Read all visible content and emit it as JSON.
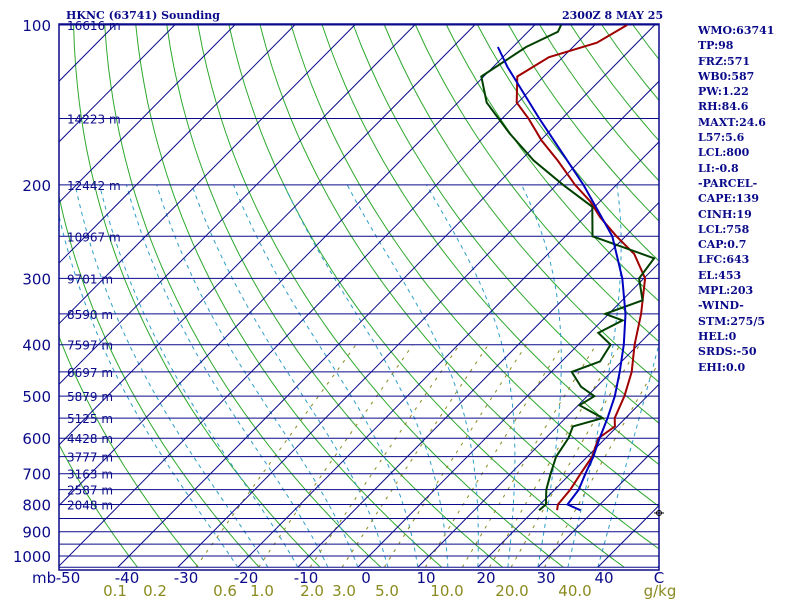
{
  "header": {
    "station": "HKNC (63741) Sounding",
    "time": "2300Z  8 MAY 25"
  },
  "side_panel": [
    "WMO:63741",
    "TP:98",
    "FRZ:571",
    "WB0:587",
    "PW:1.22",
    "RH:84.6",
    "MAXT:24.6",
    "L57:5.6",
    "LCL:800",
    "LI:-0.8",
    "-PARCEL-",
    "CAPE:139",
    "CINH:19",
    "LCL:758",
    "CAP:0.7",
    "LFC:643",
    "EL:453",
    "MPL:203",
    "-WIND-",
    "STM:275/5",
    "HEL:0",
    "SRDS:-50",
    "EHI:0.0"
  ],
  "colors": {
    "frame": "#0a0a8a",
    "isobar": "#0a0a8a",
    "isotherm": "#0a0a8a",
    "dry_adiabat": "#2ea82e",
    "moist_adiabat": "#2e9ec8",
    "mixing_ratio": "#8a8a20",
    "temperature": "#a00000",
    "dewpoint": "#004000",
    "parcel": "#0000c0"
  },
  "chart_data": {
    "type": "line",
    "title": "HKNC (63741) Sounding",
    "ylabel": "mb",
    "pressure_ticks": [
      100,
      200,
      300,
      400,
      500,
      600,
      700,
      800,
      900,
      1000
    ],
    "temperature_ticks": [
      "-50",
      "-40",
      "-30",
      "-20",
      "-10",
      "0",
      "10",
      "20",
      "30",
      "40",
      "C"
    ],
    "mixing_ratio_ticks": [
      "0.1",
      "0.2",
      "0.6",
      "1.0",
      "2.0",
      "3.0",
      "5.0",
      "10.0",
      "20.0",
      "40.0",
      "g/kg"
    ],
    "height_labels": [
      {
        "p": 100,
        "label": "16616 m"
      },
      {
        "p": 150,
        "label": "14223 m"
      },
      {
        "p": 200,
        "label": "12442 m"
      },
      {
        "p": 250,
        "label": "10967 m"
      },
      {
        "p": 300,
        "label": "9701 m"
      },
      {
        "p": 350,
        "label": "8590 m"
      },
      {
        "p": 400,
        "label": "7597 m"
      },
      {
        "p": 450,
        "label": "6697 m"
      },
      {
        "p": 500,
        "label": "5879 m"
      },
      {
        "p": 550,
        "label": "5125 m"
      },
      {
        "p": 600,
        "label": "4428 m"
      },
      {
        "p": 650,
        "label": "3777 m"
      },
      {
        "p": 700,
        "label": "3163 m"
      },
      {
        "p": 750,
        "label": "2587 m"
      },
      {
        "p": 800,
        "label": "2048 m"
      }
    ],
    "ylim": [
      100,
      1050
    ],
    "xlim_at_1000mb": [
      -50,
      50
    ],
    "skew": "skew-T log-p",
    "series": [
      {
        "key": "temperature",
        "points": [
          [
            820,
            23.8
          ],
          [
            800,
            23
          ],
          [
            750,
            22.6
          ],
          [
            700,
            21.7
          ],
          [
            650,
            20.8
          ],
          [
            600,
            18.8
          ],
          [
            570,
            19.6
          ],
          [
            550,
            18.2
          ],
          [
            500,
            16.2
          ],
          [
            450,
            13.4
          ],
          [
            400,
            9.4
          ],
          [
            350,
            5.4
          ],
          [
            300,
            0.2
          ],
          [
            270,
            -5.6
          ],
          [
            250,
            -11.5
          ],
          [
            230,
            -17.4
          ],
          [
            215,
            -21.6
          ],
          [
            200,
            -26.9
          ],
          [
            180,
            -33.8
          ],
          [
            165,
            -39.8
          ],
          [
            150,
            -45.6
          ],
          [
            140,
            -50.2
          ],
          [
            125,
            -54.4
          ],
          [
            115,
            -52.3
          ],
          [
            108,
            -46.7
          ],
          [
            100,
            -44.6
          ]
        ]
      },
      {
        "key": "dewpoint",
        "points": [
          [
            820,
            20.8
          ],
          [
            800,
            21
          ],
          [
            750,
            18.6
          ],
          [
            700,
            16.7
          ],
          [
            650,
            14.8
          ],
          [
            600,
            13.8
          ],
          [
            570,
            12.6
          ],
          [
            550,
            16.2
          ],
          [
            520,
            10.2
          ],
          [
            500,
            11.2
          ],
          [
            480,
            7.4
          ],
          [
            450,
            3.4
          ],
          [
            430,
            6.4
          ],
          [
            400,
            5.4
          ],
          [
            380,
            1.4
          ],
          [
            360,
            3.4
          ],
          [
            350,
            -0.6
          ],
          [
            330,
            3.4
          ],
          [
            300,
            -0.8
          ],
          [
            275,
            -1.6
          ],
          [
            250,
            -15.5
          ],
          [
            220,
            -20.4
          ],
          [
            200,
            -28.9
          ],
          [
            180,
            -37.8
          ],
          [
            160,
            -46.3
          ],
          [
            140,
            -55.2
          ],
          [
            125,
            -60.4
          ],
          [
            110,
            -57.8
          ],
          [
            103,
            -55
          ],
          [
            100,
            -55.6
          ]
        ]
      },
      {
        "key": "parcel",
        "points": [
          [
            820,
            27.7
          ],
          [
            800,
            24.6
          ],
          [
            750,
            24
          ],
          [
            700,
            22.5
          ],
          [
            650,
            21
          ],
          [
            600,
            19
          ],
          [
            550,
            17
          ],
          [
            500,
            14.6
          ],
          [
            450,
            11.4
          ],
          [
            400,
            7.6
          ],
          [
            350,
            2.8
          ],
          [
            300,
            -3.6
          ],
          [
            250,
            -12.2
          ],
          [
            200,
            -25.5
          ],
          [
            150,
            -43.8
          ],
          [
            120,
            -57.6
          ],
          [
            110,
            -62.5
          ]
        ]
      }
    ]
  }
}
